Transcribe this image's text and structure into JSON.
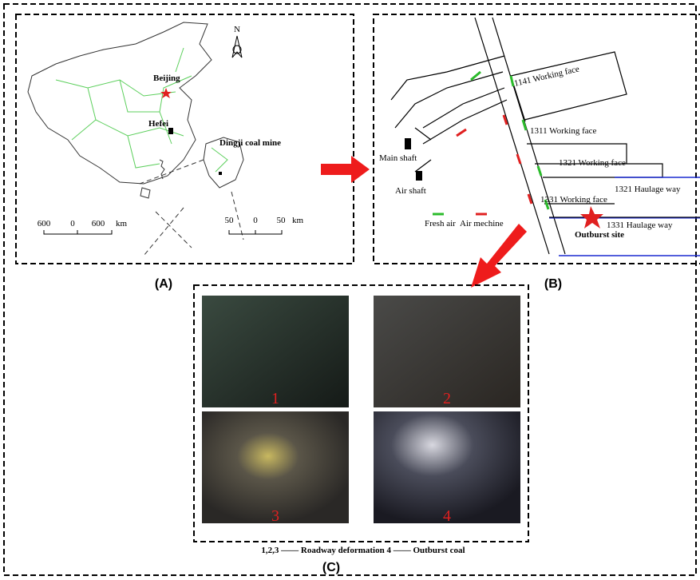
{
  "panel_a": {
    "label": "(A)",
    "beijing": "Beijing",
    "hefei": "Hefei",
    "mine": "Dingji coal mine",
    "north": "N",
    "scale_large": [
      "600",
      "0",
      "600",
      "km"
    ],
    "scale_small": [
      "50",
      "0",
      "50",
      "km"
    ]
  },
  "panel_b": {
    "label": "(B)",
    "faces": [
      "1141 Working face",
      "1311 Working face",
      "1321 Working face",
      "1331 Working face"
    ],
    "haulage": [
      "1321 Haulage way",
      "1331 Haulage way"
    ],
    "main_shaft": "Main shaft",
    "air_shaft": "Air shaft",
    "fresh_air": "Fresh air",
    "air_machine": "Air mechine",
    "outburst": "Outburst site"
  },
  "panel_c": {
    "label": "(C)",
    "photos": [
      "1",
      "2",
      "3",
      "4"
    ],
    "caption": "1,2,3 —— Roadway deformation  4 —— Outburst coal"
  }
}
